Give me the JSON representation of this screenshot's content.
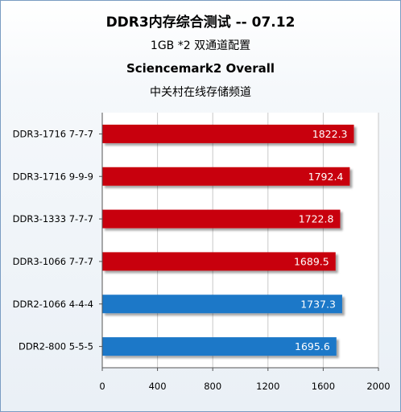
{
  "chart_data": {
    "type": "bar",
    "orientation": "horizontal",
    "title": "DDR3内存综合测试 -- 07.12",
    "subtitles": [
      "1GB *2 双通道配置",
      "Sciencemark2 Overall",
      "中关村在线存储频道"
    ],
    "categories": [
      "DDR3-1716 7-7-7",
      "DDR3-1716 9-9-9",
      "DDR3-1333 7-7-7",
      "DDR3-1066 7-7-7",
      "DDR2-1066 4-4-4",
      "DDR2-800 5-5-5"
    ],
    "values": [
      1822.3,
      1792.4,
      1722.8,
      1689.5,
      1737.3,
      1695.6
    ],
    "value_labels": [
      "1822.3",
      "1792.4",
      "1722.8",
      "1689.5",
      "1737.3",
      "1695.6"
    ],
    "bar_colors": [
      "#c8000a",
      "#c8000a",
      "#c8000a",
      "#c8000a",
      "#1f78c8",
      "#1f78c8"
    ],
    "xlim": [
      0,
      2000
    ],
    "xticks": [
      0,
      400,
      800,
      1200,
      1600,
      2000
    ],
    "xtick_labels": [
      "0",
      "400",
      "800",
      "1200",
      "1600",
      "2000"
    ],
    "grid": "vertical"
  }
}
